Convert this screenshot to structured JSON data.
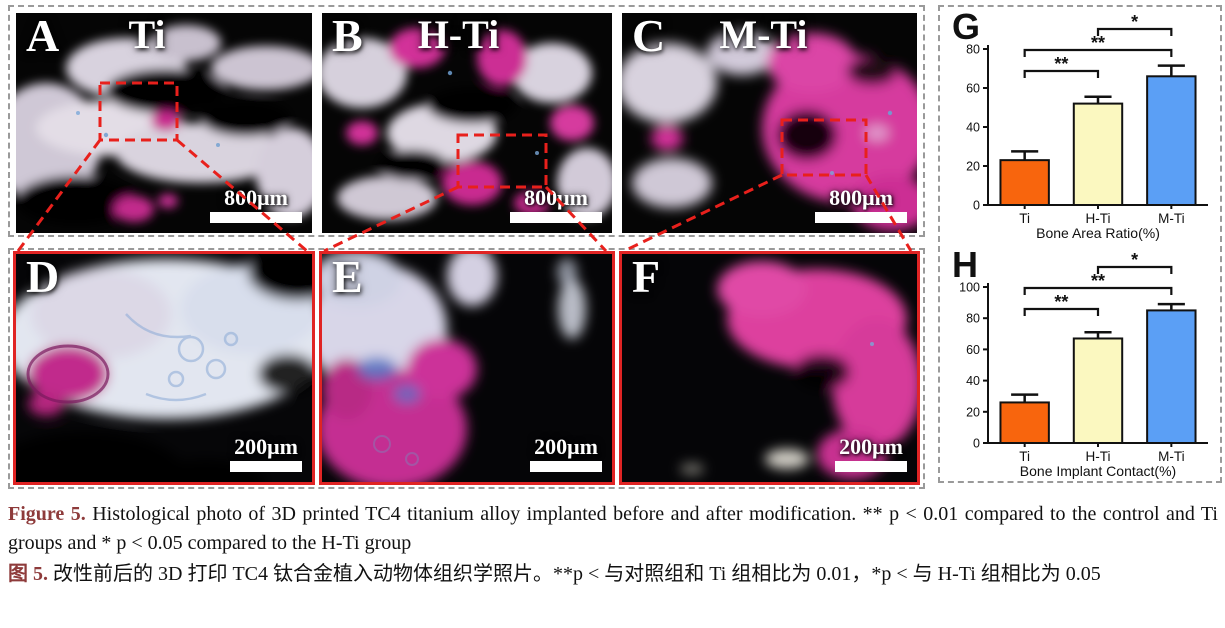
{
  "figure": {
    "panels": [
      {
        "letter": "A",
        "group": "Ti",
        "scale_label": "800μm"
      },
      {
        "letter": "B",
        "group": "H-Ti",
        "scale_label": "800μm"
      },
      {
        "letter": "C",
        "group": "M-Ti",
        "scale_label": "800μm"
      },
      {
        "letter": "D",
        "scale_label": "200μm"
      },
      {
        "letter": "E",
        "scale_label": "200μm"
      },
      {
        "letter": "F",
        "scale_label": "200μm"
      }
    ],
    "colors": {
      "annotation_red": "#e8201c",
      "panel_frame_red": "#e02424",
      "stain_magenta": "#c9308f",
      "caption_label_maroon": "#8e3b3b"
    }
  },
  "chart_data": [
    {
      "type": "bar",
      "panel_label": "G",
      "title": "",
      "xlabel": "Bone Area Ratio(%)",
      "ylabel": "",
      "categories": [
        "Ti",
        "H-Ti",
        "M-Ti"
      ],
      "values": [
        23,
        52,
        66
      ],
      "errors_plus": [
        4.5,
        3.5,
        5.5
      ],
      "bar_colors": [
        "#f8650d",
        "#fbf8c0",
        "#5b9ff5"
      ],
      "ylim": [
        0,
        80
      ],
      "yticks": [
        0,
        20,
        40,
        60,
        80
      ],
      "grid": false,
      "legend": null,
      "significance": [
        {
          "pair": [
            "Ti",
            "H-Ti"
          ],
          "label": "**"
        },
        {
          "pair": [
            "Ti",
            "M-Ti"
          ],
          "label": "**"
        },
        {
          "pair": [
            "H-Ti",
            "M-Ti"
          ],
          "label": "*"
        }
      ]
    },
    {
      "type": "bar",
      "panel_label": "H",
      "title": "",
      "xlabel": "Bone Implant Contact(%)",
      "ylabel": "",
      "categories": [
        "Ti",
        "H-Ti",
        "M-Ti"
      ],
      "values": [
        26,
        67,
        85
      ],
      "errors_plus": [
        5,
        4,
        4
      ],
      "bar_colors": [
        "#f8650d",
        "#fbf8c0",
        "#5b9ff5"
      ],
      "ylim": [
        0,
        100
      ],
      "yticks": [
        0,
        20,
        40,
        60,
        80,
        100
      ],
      "grid": false,
      "legend": null,
      "significance": [
        {
          "pair": [
            "Ti",
            "H-Ti"
          ],
          "label": "**"
        },
        {
          "pair": [
            "Ti",
            "M-Ti"
          ],
          "label": "**"
        },
        {
          "pair": [
            "H-Ti",
            "M-Ti"
          ],
          "label": "*"
        }
      ]
    }
  ],
  "caption": {
    "en_label": "Figure 5.",
    "en_text": "Histological photo of 3D printed TC4 titanium alloy implanted before and after modification. ** p < 0.01 compared to the control and Ti groups and * p < 0.05 compared to the H-Ti group",
    "zh_label": "图 5.",
    "zh_text": "改性前后的 3D 打印 TC4 钛合金植入动物体组织学照片。**p < 与对照组和 Ti 组相比为 0.01，*p < 与 H-Ti 组相比为 0.05"
  }
}
